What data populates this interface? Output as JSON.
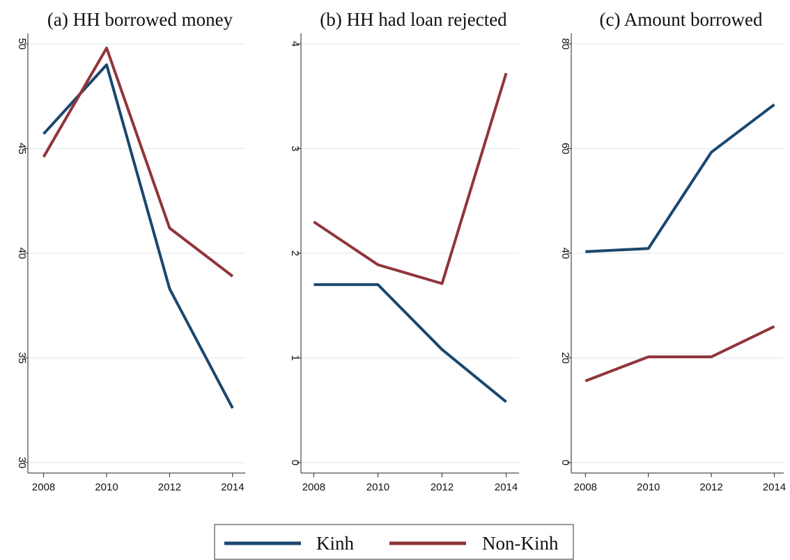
{
  "chart_data": [
    {
      "type": "line",
      "title": "(a) HH borrowed money",
      "x": [
        2008,
        2010,
        2012,
        2014
      ],
      "xlim": [
        2007.5,
        2014.4
      ],
      "xticks": [
        2008,
        2010,
        2012,
        2014
      ],
      "ylim": [
        29.5,
        50.5
      ],
      "yticks": [
        30,
        35,
        40,
        45,
        50
      ],
      "grid": true,
      "series": [
        {
          "name": "Kinh",
          "color": "#1a476f",
          "values": [
            45.7,
            49.0,
            38.3,
            32.6
          ]
        },
        {
          "name": "Non-Kinh",
          "color": "#90353b",
          "values": [
            44.6,
            49.8,
            41.2,
            38.9
          ]
        }
      ]
    },
    {
      "type": "line",
      "title": "(b) HH had loan rejected",
      "x": [
        2008,
        2010,
        2012,
        2014
      ],
      "xlim": [
        2007.6,
        2014.4
      ],
      "xticks": [
        2008,
        2010,
        2012,
        2014
      ],
      "ylim": [
        -0.1,
        4.1
      ],
      "yticks": [
        0,
        1,
        2,
        3,
        4
      ],
      "grid": true,
      "series": [
        {
          "color": "#1a476f",
          "values": [
            1.7,
            1.7,
            1.08,
            0.58
          ]
        },
        {
          "color": "#90353b",
          "values": [
            2.3,
            1.89,
            1.71,
            3.72
          ]
        }
      ]
    },
    {
      "type": "line",
      "title": "(c) Amount borrowed",
      "x": [
        2008,
        2010,
        2012,
        2014
      ],
      "xlim": [
        2007.55,
        2014.3
      ],
      "xticks": [
        2008,
        2010,
        2012,
        2014
      ],
      "ylim": [
        -2,
        82
      ],
      "yticks": [
        0,
        20,
        40,
        60,
        80
      ],
      "grid": true,
      "series": [
        {
          "color": "#1a476f",
          "values": [
            40.3,
            40.9,
            59.3,
            68.4
          ]
        },
        {
          "color": "#90353b",
          "values": [
            15.6,
            20.2,
            20.2,
            26.0
          ]
        }
      ]
    }
  ]
}
